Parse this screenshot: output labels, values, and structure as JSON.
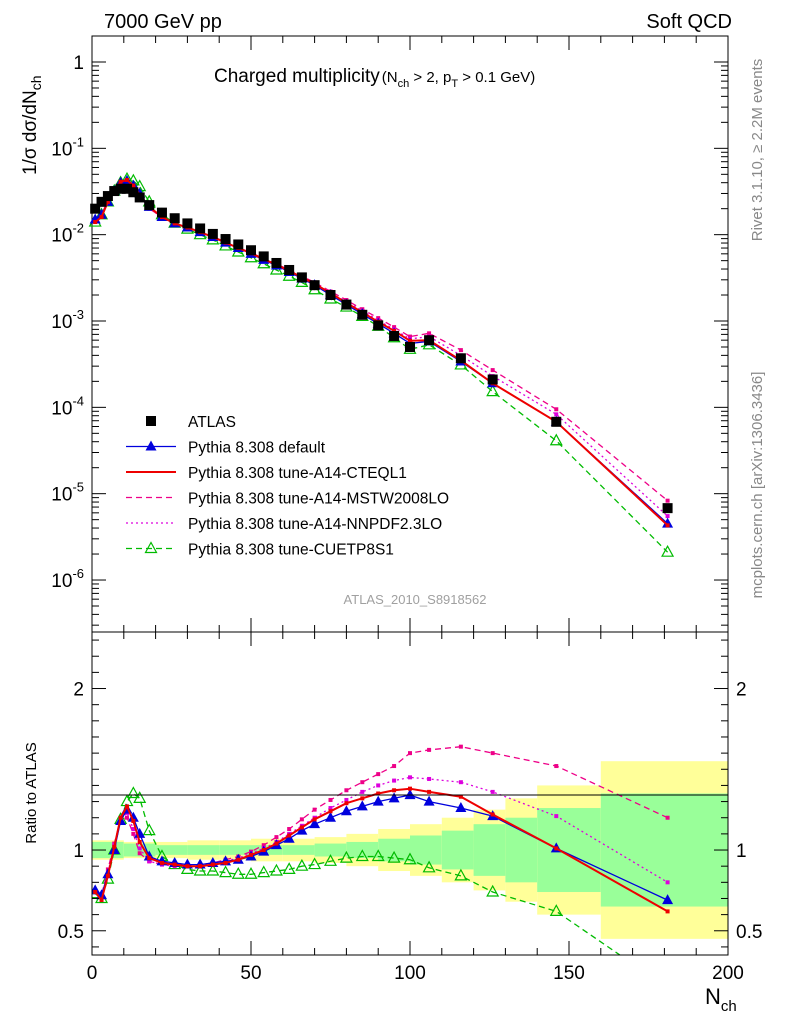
{
  "header": {
    "left": "7000 GeV pp",
    "right": "Soft QCD"
  },
  "side_text": {
    "rivet": "Rivet 3.1.10, ≥ 2.2M events",
    "source": "mcplots.cern.ch [arXiv:1306.3436]"
  },
  "chart_data": [
    {
      "type": "scatter",
      "title_main": "Charged multiplicity",
      "title_sub": "(N_ch > 2, p_T > 0.1 GeV)",
      "watermark": "ATLAS_2010_S8918562",
      "ylabel": "1/σ dσ/dN_ch",
      "xlim": [
        0,
        200
      ],
      "ylim": [
        2.5e-07,
        2.0
      ],
      "log_y": true,
      "y_ticks": [
        {
          "value": 1,
          "label": "1"
        },
        {
          "value": 0.1,
          "label": "10^-1"
        },
        {
          "value": 0.01,
          "label": "10^-2"
        },
        {
          "value": 0.001,
          "label": "10^-3"
        },
        {
          "value": 0.0001,
          "label": "10^-4"
        },
        {
          "value": 1e-05,
          "label": "10^-5"
        },
        {
          "value": 1e-06,
          "label": "10^-6"
        }
      ],
      "legend_position": "bottom-left",
      "series": [
        {
          "name": "ATLAS",
          "color": "#000000",
          "style": "data",
          "marker": "square",
          "x": [
            1,
            3,
            5,
            7,
            9,
            11,
            13,
            15,
            18,
            22,
            26,
            30,
            34,
            38,
            42,
            46,
            50,
            54,
            58,
            62,
            66,
            70,
            75,
            80,
            85,
            90,
            95,
            100,
            106,
            116,
            126,
            146,
            181
          ],
          "y": [
            0.02,
            0.024,
            0.028,
            0.032,
            0.034,
            0.034,
            0.031,
            0.027,
            0.022,
            0.018,
            0.0155,
            0.0135,
            0.0118,
            0.0102,
            0.0089,
            0.0077,
            0.0066,
            0.0056,
            0.0047,
            0.0039,
            0.0032,
            0.0026,
            0.002,
            0.00155,
            0.00118,
            0.00089,
            0.00067,
            0.0005,
            0.0006,
            0.00037,
            0.00021,
            6.8e-05,
            6.8e-06
          ]
        },
        {
          "name": "Pythia 8.308 default",
          "color": "#0000dd",
          "style": "solid",
          "marker": "triangle-filled",
          "x": [
            1,
            3,
            5,
            7,
            9,
            11,
            13,
            15,
            18,
            22,
            26,
            30,
            34,
            38,
            42,
            46,
            50,
            54,
            58,
            62,
            66,
            70,
            75,
            80,
            85,
            90,
            95,
            100,
            106,
            116,
            126,
            146,
            181
          ],
          "y": [
            0.015,
            0.017,
            0.024,
            0.032,
            0.04,
            0.042,
            0.037,
            0.03,
            0.021,
            0.016,
            0.0135,
            0.0121,
            0.0107,
            0.0094,
            0.0081,
            0.007,
            0.006,
            0.0051,
            0.0044,
            0.0037,
            0.0031,
            0.0026,
            0.002,
            0.00155,
            0.0012,
            0.00093,
            0.00072,
            0.00055,
            0.00058,
            0.00034,
            0.00019,
            6.8e-05,
            4.5e-06
          ]
        },
        {
          "name": "Pythia 8.308 tune-A14-CTEQL1",
          "color": "#ee0000",
          "style": "solid",
          "marker": "small",
          "x": [
            1,
            3,
            5,
            7,
            9,
            11,
            13,
            15,
            18,
            22,
            26,
            30,
            34,
            38,
            42,
            46,
            50,
            54,
            58,
            62,
            66,
            70,
            75,
            80,
            85,
            90,
            95,
            100,
            106,
            116,
            126,
            146,
            181
          ],
          "y": [
            0.014,
            0.016,
            0.024,
            0.032,
            0.041,
            0.043,
            0.037,
            0.029,
            0.021,
            0.016,
            0.0135,
            0.0121,
            0.0107,
            0.0094,
            0.0081,
            0.007,
            0.0061,
            0.0052,
            0.0045,
            0.0038,
            0.0032,
            0.0027,
            0.0021,
            0.00162,
            0.00126,
            0.00098,
            0.00077,
            0.00059,
            0.0006,
            0.00035,
            0.00019,
            6.8e-05,
            4.3e-06
          ]
        },
        {
          "name": "Pythia 8.308 tune-A14-MSTW2008LO",
          "color": "#ee0088",
          "style": "dashed",
          "marker": "small",
          "x": [
            1,
            3,
            5,
            7,
            9,
            11,
            13,
            15,
            18,
            22,
            26,
            30,
            34,
            38,
            42,
            46,
            50,
            54,
            58,
            62,
            66,
            70,
            75,
            80,
            85,
            90,
            95,
            100,
            106,
            116,
            126,
            146,
            181
          ],
          "y": [
            0.015,
            0.017,
            0.025,
            0.033,
            0.04,
            0.041,
            0.035,
            0.028,
            0.02,
            0.016,
            0.0135,
            0.0121,
            0.0107,
            0.0095,
            0.0082,
            0.0071,
            0.0062,
            0.0053,
            0.0046,
            0.0039,
            0.0033,
            0.0028,
            0.0022,
            0.00175,
            0.00137,
            0.00108,
            0.00085,
            0.00066,
            0.00072,
            0.00046,
            0.00027,
            9.5e-05,
            8.3e-06
          ]
        },
        {
          "name": "Pythia 8.308 tune-A14-NNPDF2.3LO",
          "color": "#dd00dd",
          "style": "dotted",
          "marker": "small",
          "x": [
            1,
            3,
            5,
            7,
            9,
            11,
            13,
            15,
            18,
            22,
            26,
            30,
            34,
            38,
            42,
            46,
            50,
            54,
            58,
            62,
            66,
            70,
            75,
            80,
            85,
            90,
            95,
            100,
            106,
            116,
            126,
            146,
            181
          ],
          "y": [
            0.015,
            0.017,
            0.025,
            0.033,
            0.04,
            0.042,
            0.036,
            0.028,
            0.02,
            0.016,
            0.0134,
            0.012,
            0.0106,
            0.0094,
            0.0081,
            0.007,
            0.0061,
            0.0052,
            0.0045,
            0.0038,
            0.0032,
            0.0027,
            0.0021,
            0.00168,
            0.00131,
            0.00102,
            0.0008,
            0.00062,
            0.00066,
            0.0004,
            0.00023,
            8.3e-05,
            5.5e-06
          ]
        },
        {
          "name": "Pythia 8.308 tune-CUETP8S1",
          "color": "#00bb00",
          "style": "dashed",
          "marker": "triangle-open",
          "x": [
            1,
            3,
            5,
            7,
            9,
            11,
            13,
            15,
            18,
            22,
            26,
            30,
            34,
            38,
            42,
            46,
            50,
            54,
            58,
            62,
            66,
            70,
            75,
            80,
            85,
            90,
            95,
            100,
            106,
            116,
            126,
            146,
            181
          ],
          "y": [
            0.014,
            0.017,
            0.024,
            0.032,
            0.04,
            0.044,
            0.042,
            0.036,
            0.024,
            0.017,
            0.0136,
            0.0116,
            0.01,
            0.0087,
            0.0074,
            0.0063,
            0.0054,
            0.0046,
            0.0039,
            0.0033,
            0.0028,
            0.0023,
            0.0018,
            0.00145,
            0.00113,
            0.00087,
            0.00064,
            0.00047,
            0.00053,
            0.00031,
            0.000152,
            4.1e-05,
            2.1e-06
          ]
        }
      ]
    },
    {
      "type": "line",
      "ylabel": "Ratio to ATLAS",
      "xlabel": "N_ch",
      "xlim": [
        0,
        200
      ],
      "ylim": [
        0.35,
        2.35
      ],
      "y_ticks": [
        0.5,
        1,
        2
      ],
      "x_ticks": [
        0,
        50,
        100,
        150,
        200
      ],
      "reference": 1,
      "uncertainty_bands": {
        "edges": [
          0,
          10,
          20,
          30,
          40,
          50,
          60,
          70,
          80,
          90,
          100,
          110,
          120,
          130,
          140,
          160,
          200
        ],
        "inner": [
          0.05,
          0.04,
          0.03,
          0.03,
          0.03,
          0.03,
          0.03,
          0.04,
          0.05,
          0.07,
          0.09,
          0.12,
          0.16,
          0.2,
          0.26,
          0.35,
          0.45
        ],
        "outer": [
          0.06,
          0.05,
          0.05,
          0.06,
          0.06,
          0.07,
          0.07,
          0.08,
          0.1,
          0.13,
          0.16,
          0.2,
          0.25,
          0.32,
          0.4,
          0.55,
          0.9
        ],
        "inner_color": "#99ff99",
        "outer_color": "#ffff99"
      },
      "series": [
        {
          "name": "Pythia 8.308 default",
          "color": "#0000dd",
          "style": "solid",
          "marker": "triangle-filled",
          "x": [
            1,
            3,
            5,
            7,
            9,
            11,
            13,
            15,
            18,
            22,
            26,
            30,
            34,
            38,
            42,
            46,
            50,
            54,
            58,
            62,
            66,
            70,
            75,
            80,
            85,
            90,
            95,
            100,
            106,
            116,
            126,
            146,
            181
          ],
          "y": [
            0.75,
            0.72,
            0.85,
            1.0,
            1.18,
            1.25,
            1.2,
            1.1,
            0.96,
            0.93,
            0.92,
            0.91,
            0.91,
            0.92,
            0.93,
            0.94,
            0.96,
            0.99,
            1.03,
            1.07,
            1.12,
            1.16,
            1.2,
            1.24,
            1.27,
            1.3,
            1.32,
            1.34,
            1.3,
            1.26,
            1.21,
            1.01,
            0.69
          ]
        },
        {
          "name": "Pythia 8.308 tune-A14-CTEQL1",
          "color": "#ee0000",
          "style": "solid",
          "marker": "small",
          "x": [
            1,
            3,
            5,
            7,
            9,
            11,
            13,
            15,
            18,
            22,
            26,
            30,
            34,
            38,
            42,
            46,
            50,
            54,
            58,
            62,
            66,
            70,
            75,
            80,
            85,
            90,
            95,
            100,
            106,
            116,
            126,
            146,
            181
          ],
          "y": [
            0.74,
            0.69,
            0.84,
            1.02,
            1.2,
            1.27,
            1.18,
            1.05,
            0.95,
            0.92,
            0.91,
            0.9,
            0.9,
            0.91,
            0.92,
            0.94,
            0.97,
            1.0,
            1.04,
            1.09,
            1.14,
            1.19,
            1.24,
            1.29,
            1.32,
            1.35,
            1.37,
            1.38,
            1.36,
            1.33,
            1.22,
            1.01,
            0.62
          ]
        },
        {
          "name": "Pythia 8.308 tune-A14-MSTW2008LO",
          "color": "#ee0088",
          "style": "dashed",
          "marker": "small",
          "x": [
            1,
            3,
            5,
            7,
            9,
            11,
            13,
            15,
            18,
            22,
            26,
            30,
            34,
            38,
            42,
            46,
            50,
            54,
            58,
            62,
            66,
            70,
            75,
            80,
            85,
            90,
            95,
            100,
            106,
            116,
            126,
            146,
            181
          ],
          "y": [
            0.75,
            0.72,
            0.88,
            1.04,
            1.19,
            1.2,
            1.1,
            0.98,
            0.93,
            0.91,
            0.91,
            0.91,
            0.91,
            0.92,
            0.94,
            0.96,
            0.99,
            1.03,
            1.08,
            1.13,
            1.19,
            1.25,
            1.31,
            1.37,
            1.42,
            1.47,
            1.52,
            1.6,
            1.62,
            1.64,
            1.6,
            1.52,
            1.2
          ]
        },
        {
          "name": "Pythia 8.308 tune-A14-NNPDF2.3LO",
          "color": "#dd00dd",
          "style": "dotted",
          "marker": "small",
          "x": [
            1,
            3,
            5,
            7,
            9,
            11,
            13,
            15,
            18,
            22,
            26,
            30,
            34,
            38,
            42,
            46,
            50,
            54,
            58,
            62,
            66,
            70,
            75,
            80,
            85,
            90,
            95,
            100,
            106,
            116,
            126,
            146,
            181
          ],
          "y": [
            0.75,
            0.71,
            0.86,
            1.03,
            1.19,
            1.23,
            1.13,
            1.01,
            0.93,
            0.91,
            0.9,
            0.9,
            0.9,
            0.91,
            0.93,
            0.95,
            0.98,
            1.01,
            1.05,
            1.1,
            1.15,
            1.2,
            1.26,
            1.31,
            1.36,
            1.4,
            1.43,
            1.45,
            1.44,
            1.42,
            1.36,
            1.21,
            0.8
          ]
        },
        {
          "name": "Pythia 8.308 tune-CUETP8S1",
          "color": "#00bb00",
          "style": "dashed",
          "marker": "triangle-open",
          "x": [
            1,
            3,
            5,
            7,
            9,
            11,
            13,
            15,
            18,
            22,
            26,
            30,
            34,
            38,
            42,
            46,
            50,
            54,
            58,
            62,
            66,
            70,
            75,
            80,
            85,
            90,
            95,
            100,
            106,
            116,
            126,
            146,
            166
          ],
          "y": [
            0.73,
            0.7,
            0.82,
            1.0,
            1.19,
            1.3,
            1.35,
            1.32,
            1.12,
            0.96,
            0.91,
            0.88,
            0.87,
            0.87,
            0.86,
            0.85,
            0.85,
            0.86,
            0.87,
            0.88,
            0.9,
            0.91,
            0.93,
            0.95,
            0.96,
            0.96,
            0.95,
            0.94,
            0.89,
            0.84,
            0.74,
            0.62,
            0.35
          ]
        }
      ]
    }
  ]
}
